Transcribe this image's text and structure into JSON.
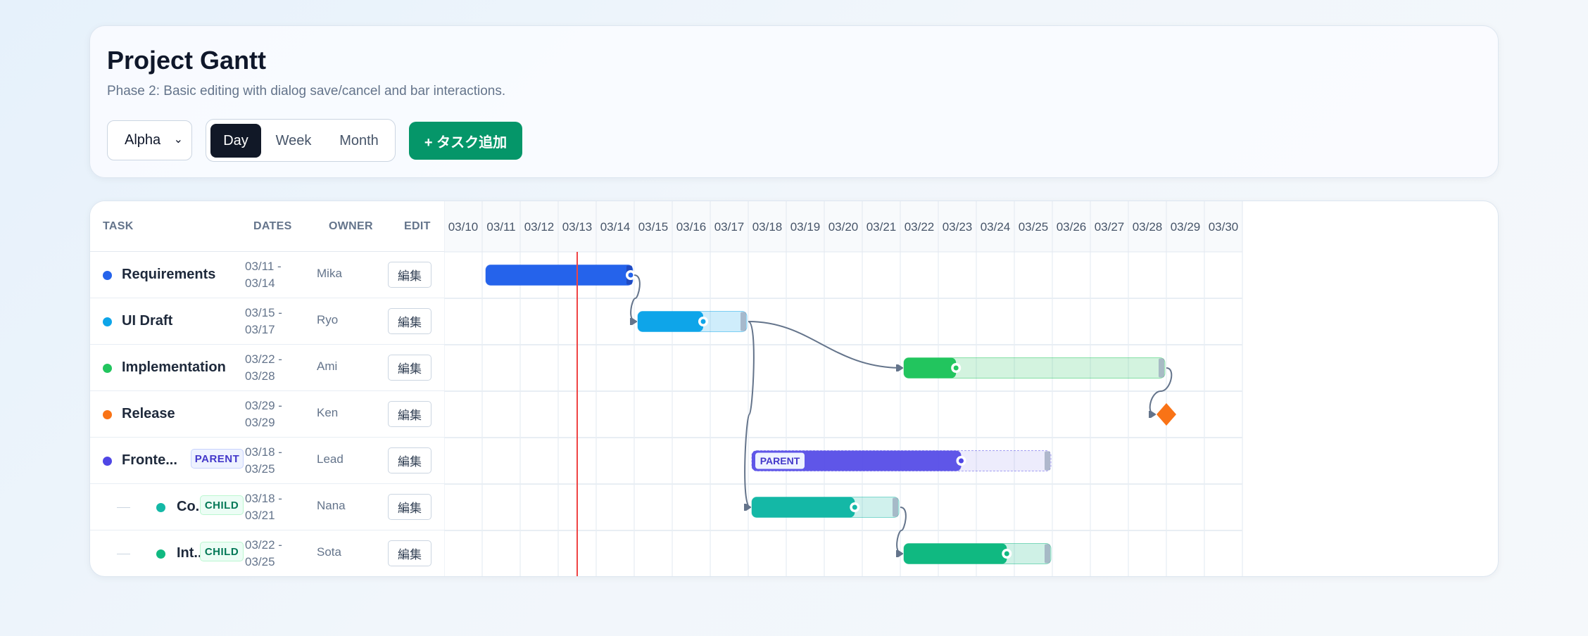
{
  "header": {
    "title": "Project Gantt",
    "subtitle": "Phase 2: Basic editing with dialog save/cancel and bar interactions.",
    "project_select": "Alpha",
    "views": [
      "Day",
      "Week",
      "Month"
    ],
    "active_view": "Day",
    "add_button": "+ タスク追加"
  },
  "columns": {
    "task": "TASK",
    "dates": "DATES",
    "owner": "OWNER",
    "edit": "EDIT"
  },
  "days": [
    "03/10",
    "03/11",
    "03/12",
    "03/13",
    "03/14",
    "03/15",
    "03/16",
    "03/17",
    "03/18",
    "03/19",
    "03/20",
    "03/21",
    "03/22",
    "03/23",
    "03/24",
    "03/25",
    "03/26",
    "03/27",
    "03/28",
    "03/29",
    "03/30"
  ],
  "today": "03/13",
  "tasks": [
    {
      "name": "Requirements",
      "start": "03/11",
      "end": "03/14",
      "dates": [
        "03/11 -",
        "03/14"
      ],
      "owner": "Mika",
      "edit": "編集",
      "color": "#2563eb",
      "progress": 1.0
    },
    {
      "name": "UI Draft",
      "start": "03/15",
      "end": "03/17",
      "dates": [
        "03/15 -",
        "03/17"
      ],
      "owner": "Ryo",
      "edit": "編集",
      "color": "#0ea5e9",
      "progress": 0.6
    },
    {
      "name": "Implementation",
      "start": "03/22",
      "end": "03/28",
      "dates": [
        "03/22 -",
        "03/28"
      ],
      "owner": "Ami",
      "edit": "編集",
      "color": "#22c55e",
      "progress": 0.2
    },
    {
      "name": "Release",
      "start": "03/29",
      "end": "03/29",
      "dates": [
        "03/29 -",
        "03/29"
      ],
      "owner": "Ken",
      "edit": "編集",
      "color": "#f97316",
      "milestone": true
    },
    {
      "name": "Fronte...",
      "badge": "PARENT",
      "start": "03/18",
      "end": "03/25",
      "dates": [
        "03/18 -",
        "03/25"
      ],
      "owner": "Lead",
      "edit": "編集",
      "color": "#4f46e5",
      "progress": 0.7,
      "parent": true
    },
    {
      "name": "Co...",
      "badge": "CHILD",
      "start": "03/18",
      "end": "03/21",
      "dates": [
        "03/18 -",
        "03/21"
      ],
      "owner": "Nana",
      "edit": "編集",
      "color": "#14b8a6",
      "progress": 0.7,
      "child": true
    },
    {
      "name": "Int...",
      "badge": "CHILD",
      "start": "03/22",
      "end": "03/25",
      "dates": [
        "03/22 -",
        "03/25"
      ],
      "owner": "Sota",
      "edit": "編集",
      "color": "#10b981",
      "progress": 0.7,
      "child": true
    }
  ],
  "dependencies": [
    [
      0,
      1
    ],
    [
      1,
      2
    ],
    [
      1,
      5
    ],
    [
      2,
      3
    ],
    [
      5,
      6
    ]
  ]
}
